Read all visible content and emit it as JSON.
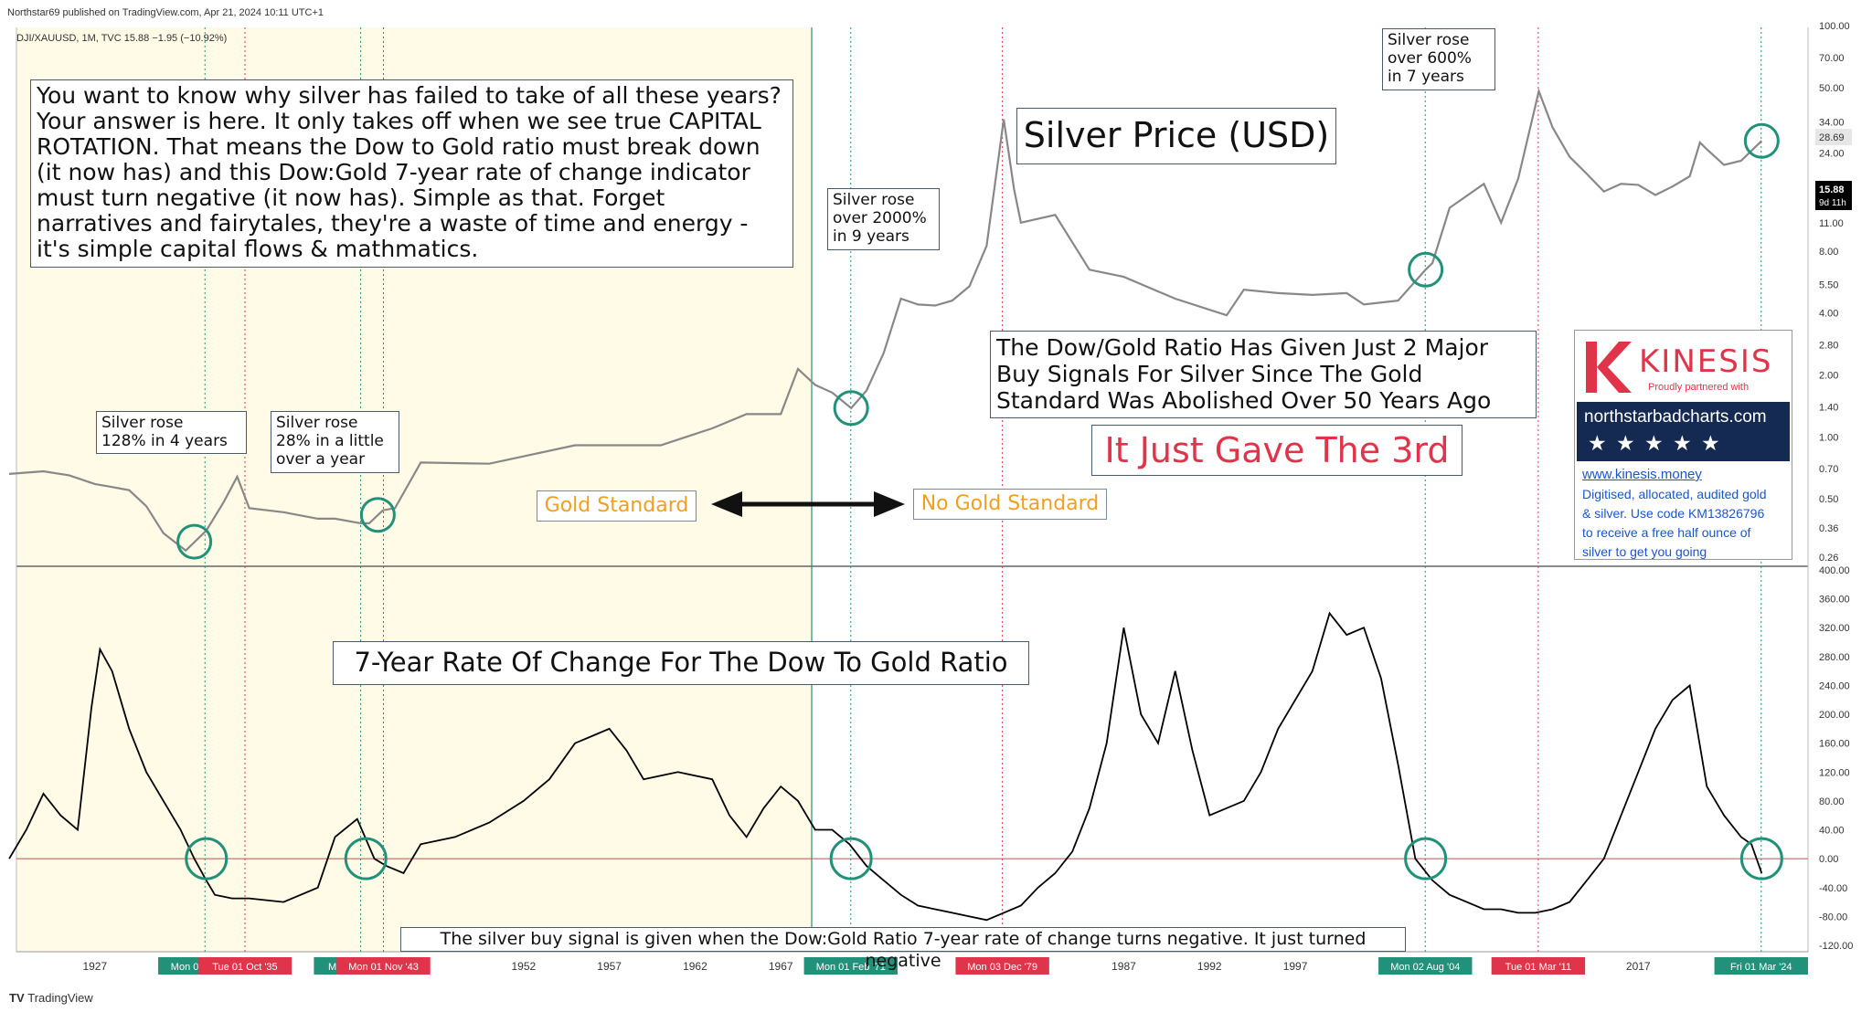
{
  "header": {
    "published": "Northstar69 published on TradingView.com, Apr 21, 2024 10:11 UTC+1",
    "symbol": "DJI/XAUUSD, 1M, TVC  15.88  −1.95 (−10.92%)"
  },
  "footer": {
    "logo_text": "TradingView"
  },
  "annotations": {
    "intro": "You want to know why silver has failed to take of all these years? Your answer is here. It only takes off when we see true CAPITAL ROTATION. That means the Dow to Gold ratio must break down (it now has) and this Dow:Gold 7-year rate of change indicator must turn negative (it now has). Simple as that. Forget narratives and fairytales, they're a waste of time and energy - it's simple capital flows & mathmatics.",
    "silver_price_title": "Silver Price (USD)",
    "rose_128": "Silver rose\n128% in 4 years",
    "rose_28": "Silver rose\n28% in a little\nover a year",
    "rose_2000": "Silver rose\nover 2000%\nin 9 years",
    "rose_600": "Silver rose\nover 600%\nin 7 years",
    "dow_gold_signals": "The Dow/Gold Ratio Has Given Just 2 Major\nBuy Signals For Silver Since The Gold\nStandard Was Abolished Over 50 Years Ago",
    "gave_3rd": "It Just Gave The 3rd",
    "gold_standard": "Gold Standard",
    "no_gold_standard": "No Gold Standard",
    "roc_title": "7-Year Rate Of Change For The Dow To Gold Ratio",
    "bottom_note": "The silver buy signal is given when the Dow:Gold Ratio 7-year rate of change turns negative. It just turned negative"
  },
  "kinesis": {
    "brand": "KINESIS",
    "partner": "Proudly partnered with",
    "site": "northstarbadcharts.com",
    "stars": "★ ★ ★ ★ ★",
    "link": "www.kinesis.money",
    "desc": "Digitised, allocated, audited gold\n& silver. Use code KM13826796\nto receive a free half ounce of\nsilver to get you going"
  },
  "colors": {
    "gold_era_bg": "#fffbe6",
    "silver_line": "#888888",
    "roc_line": "#000000",
    "green_marker": "#22917a",
    "red_marker": "#e0344a",
    "orange_label": "#f0a020"
  },
  "chart_data": [
    {
      "type": "line",
      "name": "silver-price-pane",
      "title": "Silver Price (USD)",
      "y_scale": "log",
      "y_ticks": [
        "100.00",
        "70.00",
        "50.00",
        "34.00",
        "24.00",
        "17.00",
        "11.00",
        "8.00",
        "5.50",
        "4.00",
        "2.80",
        "2.00",
        "1.40",
        "1.00",
        "0.70",
        "0.50",
        "0.36",
        "0.26"
      ],
      "price_labels": [
        {
          "value": "28.69"
        },
        {
          "value": "15.88",
          "sub": "9d 11h"
        }
      ],
      "x": [
        1922,
        1924,
        1925.5,
        1927,
        1928,
        1929,
        1930,
        1931,
        1932.3,
        1933.5,
        1934.5,
        1935.3,
        1936,
        1938,
        1940,
        1941,
        1942.5,
        1943,
        1943.8,
        1944.5,
        1946,
        1950,
        1955,
        1960,
        1963,
        1965,
        1967,
        1968,
        1969,
        1970,
        1971.1,
        1972,
        1973,
        1974,
        1975,
        1976,
        1977,
        1978,
        1979,
        1980,
        1980.6,
        1981,
        1983,
        1985,
        1987,
        1990,
        1993,
        1994,
        1996,
        1998,
        2000,
        2001,
        2003,
        2004.6,
        2005,
        2006,
        2008,
        2009,
        2010,
        2011.2,
        2012,
        2013,
        2014,
        2015,
        2016,
        2017,
        2018,
        2019,
        2020,
        2020.6,
        2021,
        2022,
        2023,
        2024.2
      ],
      "y": [
        0.66,
        0.68,
        0.65,
        0.59,
        0.57,
        0.55,
        0.46,
        0.34,
        0.28,
        0.35,
        0.48,
        0.64,
        0.45,
        0.43,
        0.4,
        0.4,
        0.38,
        0.38,
        0.44,
        0.45,
        0.75,
        0.74,
        0.91,
        0.91,
        1.1,
        1.29,
        1.29,
        2.14,
        1.79,
        1.64,
        1.38,
        1.68,
        2.56,
        4.7,
        4.4,
        4.35,
        4.6,
        5.4,
        8.5,
        35.0,
        16.0,
        11.0,
        12.0,
        6.5,
        6.0,
        4.7,
        3.9,
        5.2,
        5.0,
        4.9,
        5.0,
        4.4,
        4.6,
        6.5,
        7.0,
        13.0,
        17.0,
        11.0,
        18.0,
        48.0,
        32.0,
        23.0,
        19.0,
        15.6,
        17.0,
        16.8,
        15.0,
        16.5,
        18.5,
        27.0,
        25.0,
        21.0,
        22.0,
        27.5
      ],
      "x_ticks": [
        "1927",
        "1952",
        "1957",
        "1962",
        "1967",
        "1987",
        "1992",
        "1997",
        "2017"
      ],
      "date_labels_green": [
        "Mon 01 Jun '33",
        "Mon 01 Jul '42",
        "Mon 01 Feb '71",
        "Mon 02 Aug '04",
        "Fri 01 Mar '24"
      ],
      "date_labels_red": [
        "Tue 01 Oct '35",
        "Mon 01 Nov '43",
        "Mon 03 Dec '79",
        "Tue 01 Mar '11"
      ]
    },
    {
      "type": "line",
      "name": "roc-pane",
      "title": "7-Year Rate Of Change For The Dow To Gold Ratio",
      "y_ticks": [
        "400.00",
        "360.00",
        "320.00",
        "280.00",
        "240.00",
        "200.00",
        "160.00",
        "120.00",
        "80.00",
        "40.00",
        "0.00",
        "-40.00",
        "-80.00",
        "-120.00"
      ],
      "ylim": [
        -120,
        400
      ],
      "x": [
        1922,
        1923,
        1924,
        1925,
        1926,
        1926.8,
        1927.3,
        1928,
        1929,
        1930,
        1931,
        1932,
        1932.8,
        1933.5,
        1934,
        1935,
        1936,
        1938,
        1940,
        1941,
        1942.3,
        1943.3,
        1944,
        1945,
        1946,
        1948,
        1950,
        1952,
        1953.5,
        1955,
        1957,
        1958,
        1959,
        1961,
        1963,
        1964,
        1965,
        1966,
        1967,
        1968,
        1969,
        1970,
        1971,
        1972,
        1973,
        1974,
        1975,
        1976,
        1977,
        1978,
        1979,
        1980,
        1981,
        1982,
        1983,
        1984,
        1985,
        1986,
        1987,
        1988,
        1989,
        1990,
        1991,
        1992,
        1994,
        1995,
        1996,
        1998,
        1999,
        2000,
        2001,
        2002,
        2003,
        2004,
        2005,
        2006,
        2007,
        2008,
        2009,
        2010,
        2011,
        2012,
        2013,
        2014,
        2015,
        2016,
        2017,
        2018,
        2019,
        2020,
        2021,
        2022,
        2023,
        2023.6,
        2024.2
      ],
      "y": [
        0,
        40,
        90,
        60,
        40,
        210,
        290,
        260,
        180,
        120,
        80,
        40,
        0,
        -30,
        -50,
        -55,
        -55,
        -60,
        -40,
        30,
        55,
        0,
        -10,
        -20,
        20,
        30,
        50,
        80,
        110,
        160,
        180,
        150,
        110,
        120,
        110,
        60,
        30,
        70,
        100,
        80,
        40,
        40,
        20,
        -10,
        -30,
        -50,
        -65,
        -70,
        -75,
        -80,
        -85,
        -75,
        -65,
        -40,
        -20,
        10,
        70,
        160,
        320,
        200,
        160,
        260,
        150,
        60,
        80,
        120,
        180,
        260,
        340,
        310,
        320,
        250,
        130,
        0,
        -30,
        -50,
        -60,
        -70,
        -70,
        -75,
        -75,
        -70,
        -60,
        -30,
        0,
        60,
        120,
        180,
        220,
        240,
        100,
        60,
        30,
        20,
        -20
      ]
    }
  ]
}
